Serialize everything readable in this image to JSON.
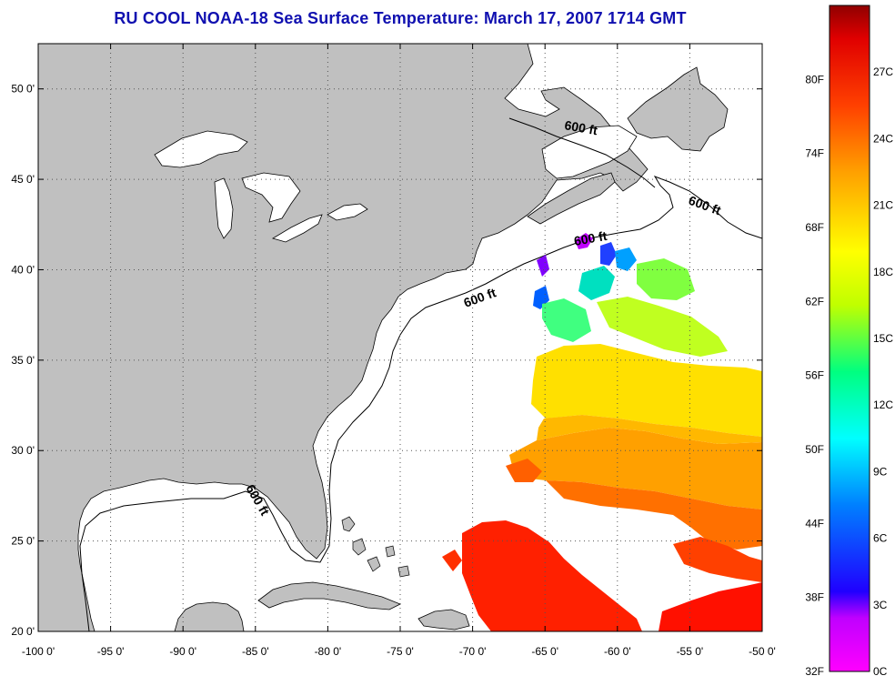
{
  "title": "RU COOL  NOAA-18  Sea Surface Temperature:  March 17, 2007 1714 GMT",
  "map": {
    "lon_range": [
      -100,
      -50
    ],
    "lat_range": [
      20,
      52.5
    ],
    "x_ticks": [
      "-100 0'",
      "-95 0'",
      "-90 0'",
      "-85 0'",
      "-80 0'",
      "-75 0'",
      "-70 0'",
      "-65 0'",
      "-60 0'",
      "-55 0'",
      "-50 0'"
    ],
    "y_ticks": [
      "20 0'",
      "25 0'",
      "30 0'",
      "35 0'",
      "40 0'",
      "45 0'",
      "50 0'"
    ],
    "grid": "dotted",
    "land_color": "#c0c0c0",
    "ocean_color": "#ffffff",
    "isobath_labels": [
      {
        "text": "600 ft",
        "rotate": 10
      },
      {
        "text": "600 ft",
        "rotate": 20
      },
      {
        "text": "600 ft",
        "rotate": -10
      },
      {
        "text": "600 ft",
        "rotate": -20
      },
      {
        "text": "600 ft",
        "rotate": 60
      }
    ]
  },
  "colorbar": {
    "left_labels": [
      "80F",
      "74F",
      "68F",
      "62F",
      "56F",
      "50F",
      "44F",
      "38F",
      "32F"
    ],
    "right_labels": [
      "27C",
      "24C",
      "21C",
      "18C",
      "15C",
      "12C",
      "9C",
      "6C",
      "3C",
      "0C"
    ],
    "colors": [
      "#ff00ff",
      "#c000ff",
      "#0000ff",
      "#00a0ff",
      "#00ffff",
      "#00ff80",
      "#c0ff00",
      "#ffff00",
      "#ffa000",
      "#ff4000",
      "#e00000",
      "#900000"
    ]
  }
}
